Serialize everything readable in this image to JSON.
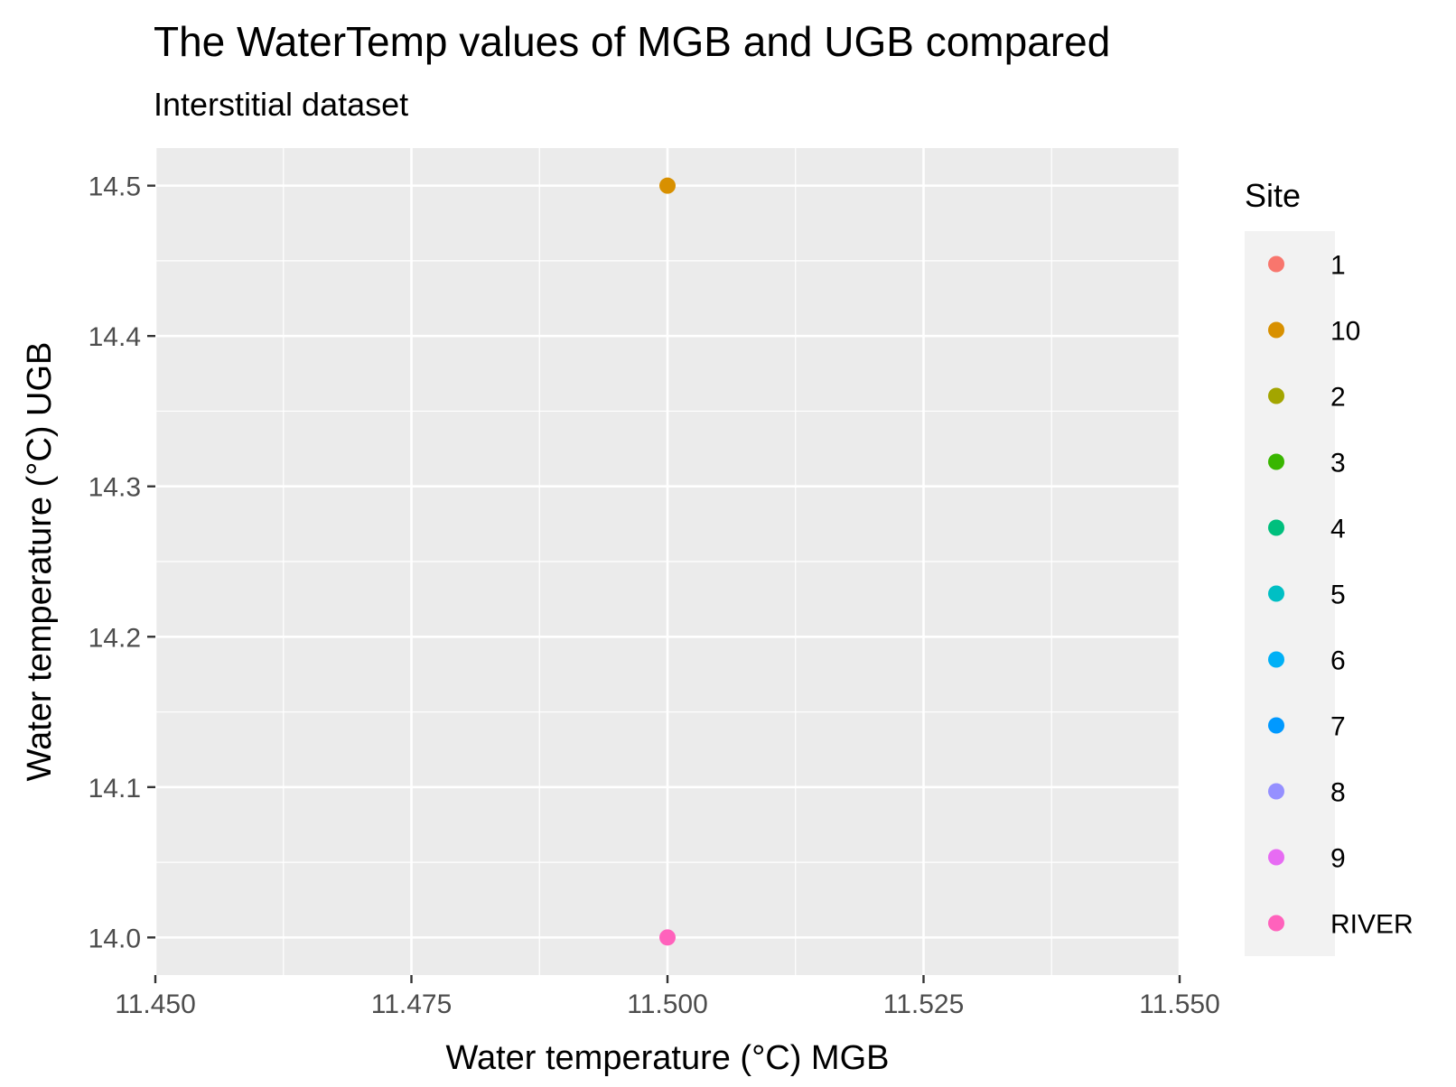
{
  "chart_data": {
    "type": "scatter",
    "title": "The WaterTemp values of MGB and UGB compared",
    "subtitle": "Interstitial dataset",
    "xlabel": "Water temperature (°C) MGB",
    "ylabel": "Water temperature (°C) UGB",
    "xlim": [
      11.45,
      11.55
    ],
    "ylim": [
      13.975,
      14.525
    ],
    "x_ticks": [
      11.45,
      11.475,
      11.5,
      11.525,
      11.55
    ],
    "x_tick_labels": [
      "11.450",
      "11.475",
      "11.500",
      "11.525",
      "11.550"
    ],
    "y_ticks": [
      14.0,
      14.1,
      14.2,
      14.3,
      14.4,
      14.5
    ],
    "y_tick_labels": [
      "14.0",
      "14.1",
      "14.2",
      "14.3",
      "14.4",
      "14.5"
    ],
    "grid": true,
    "legend_position": "right",
    "legend_title": "Site",
    "series": [
      {
        "name": "1",
        "color": "#F8766D",
        "points": []
      },
      {
        "name": "10",
        "color": "#D89000",
        "points": [
          [
            11.5,
            14.5
          ]
        ]
      },
      {
        "name": "2",
        "color": "#A3A500",
        "points": []
      },
      {
        "name": "3",
        "color": "#39B600",
        "points": []
      },
      {
        "name": "4",
        "color": "#00BF7D",
        "points": []
      },
      {
        "name": "5",
        "color": "#00BFC4",
        "points": []
      },
      {
        "name": "6",
        "color": "#00B0F6",
        "points": []
      },
      {
        "name": "7",
        "color": "#0099FF",
        "points": []
      },
      {
        "name": "8",
        "color": "#9590FF",
        "points": []
      },
      {
        "name": "9",
        "color": "#E76BF3",
        "points": []
      },
      {
        "name": "RIVER",
        "color": "#FF62BC",
        "points": [
          [
            11.5,
            14.0
          ]
        ]
      }
    ]
  }
}
